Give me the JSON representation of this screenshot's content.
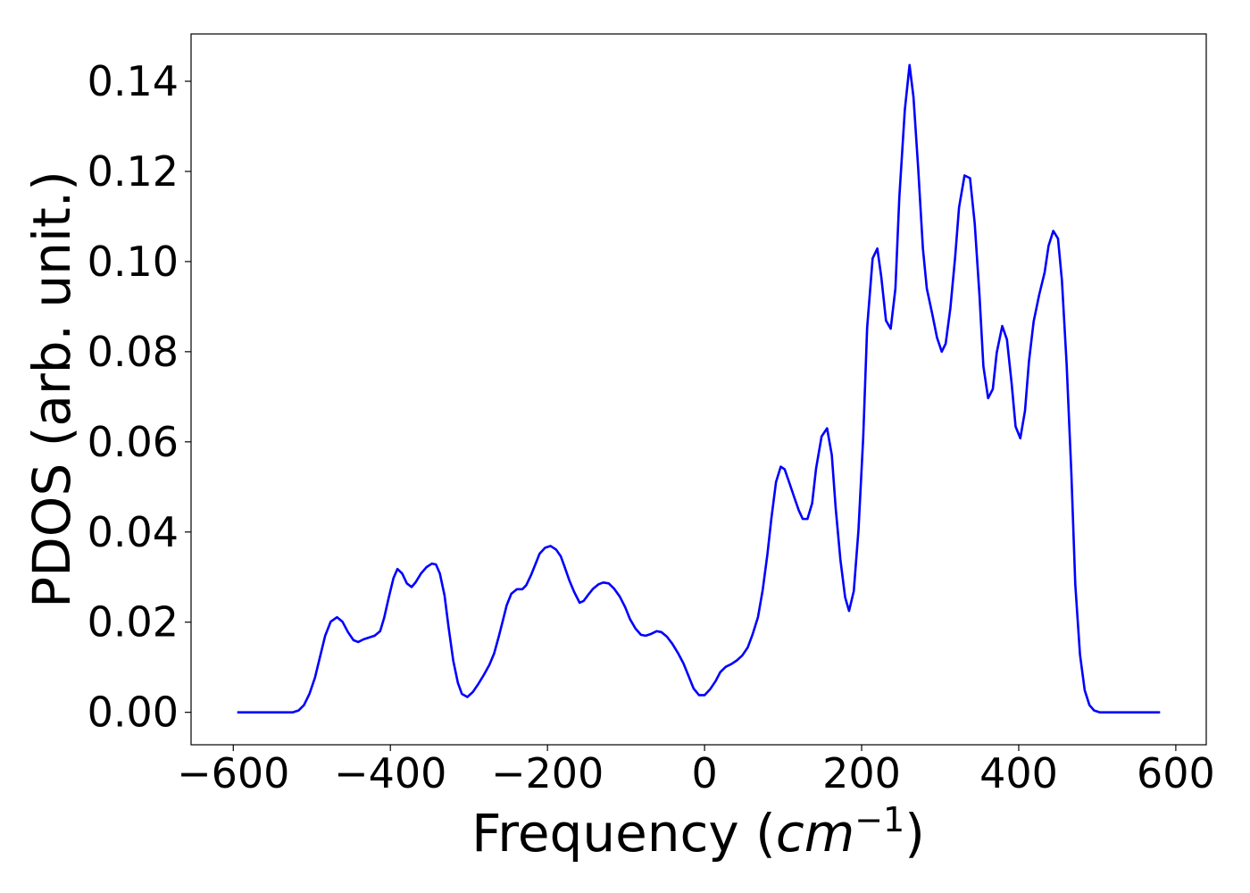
{
  "chart_data": {
    "type": "line",
    "xlabel": {
      "text": "Frequency (",
      "math": "cm",
      "sup": "−1",
      "close": ")"
    },
    "ylabel": "PDOS (arb. unit.)",
    "x": [
      -595,
      -524,
      -517,
      -510,
      -503,
      -496,
      -490,
      -483,
      -476,
      -468,
      -461,
      -454,
      -447,
      -441,
      -434,
      -427,
      -420,
      -413,
      -408,
      -402,
      -396,
      -391,
      -385,
      -379,
      -373,
      -368,
      -361,
      -354,
      -347,
      -342,
      -337,
      -331,
      -326,
      -320,
      -314,
      -309,
      -302,
      -295,
      -288,
      -281,
      -274,
      -268,
      -262,
      -256,
      -252,
      -246,
      -239,
      -232,
      -227,
      -221,
      -215,
      -210,
      -203,
      -196,
      -189,
      -183,
      -178,
      -172,
      -166,
      -159,
      -154,
      -148,
      -142,
      -135,
      -129,
      -122,
      -115,
      -108,
      -101,
      -95,
      -88,
      -81,
      -75,
      -68,
      -61,
      -55,
      -48,
      -41,
      -34,
      -27,
      -20,
      -14,
      -7,
      0,
      7,
      14,
      20,
      27,
      34,
      41,
      48,
      55,
      61,
      68,
      74,
      80,
      85,
      91,
      97,
      102,
      108,
      114,
      120,
      125,
      131,
      137,
      142,
      149,
      156,
      162,
      167,
      173,
      179,
      184,
      190,
      196,
      202,
      207,
      214,
      220,
      225,
      231,
      237,
      243,
      248,
      255,
      261,
      266,
      272,
      278,
      283,
      290,
      296,
      302,
      307,
      313,
      319,
      324,
      331,
      338,
      344,
      350,
      355,
      361,
      367,
      372,
      379,
      385,
      391,
      396,
      402,
      408,
      413,
      419,
      426,
      433,
      438,
      444,
      450,
      455,
      461,
      467,
      472,
      478,
      484,
      490,
      496,
      503,
      580
    ],
    "series": [
      {
        "color": "#0000ff",
        "values": [
          0,
          0,
          0.0004,
          0.0016,
          0.0041,
          0.0077,
          0.012,
          0.017,
          0.0201,
          0.0211,
          0.0201,
          0.0178,
          0.016,
          0.0156,
          0.0162,
          0.0166,
          0.017,
          0.018,
          0.0209,
          0.0255,
          0.0298,
          0.0318,
          0.0308,
          0.0286,
          0.0278,
          0.0288,
          0.0308,
          0.0322,
          0.033,
          0.0328,
          0.0308,
          0.0259,
          0.019,
          0.0115,
          0.0065,
          0.0041,
          0.0034,
          0.0045,
          0.0063,
          0.0083,
          0.0105,
          0.013,
          0.0168,
          0.0209,
          0.0237,
          0.0263,
          0.0273,
          0.0273,
          0.0282,
          0.0304,
          0.033,
          0.0352,
          0.0365,
          0.0369,
          0.0361,
          0.0346,
          0.0322,
          0.0292,
          0.0267,
          0.0243,
          0.0247,
          0.0261,
          0.0274,
          0.0284,
          0.0288,
          0.0286,
          0.0274,
          0.0257,
          0.0233,
          0.0207,
          0.0186,
          0.0172,
          0.017,
          0.0174,
          0.018,
          0.0178,
          0.0168,
          0.0152,
          0.0132,
          0.0109,
          0.0079,
          0.0053,
          0.0038,
          0.0038,
          0.0051,
          0.0069,
          0.0089,
          0.0101,
          0.0107,
          0.0115,
          0.0126,
          0.0144,
          0.0172,
          0.0211,
          0.0271,
          0.035,
          0.0429,
          0.0511,
          0.0545,
          0.0539,
          0.0509,
          0.0478,
          0.0448,
          0.0429,
          0.0429,
          0.0464,
          0.0541,
          0.0612,
          0.063,
          0.0571,
          0.0452,
          0.0338,
          0.0255,
          0.0225,
          0.0269,
          0.0405,
          0.061,
          0.0853,
          0.1007,
          0.1029,
          0.0966,
          0.0869,
          0.0851,
          0.094,
          0.1143,
          0.1337,
          0.1436,
          0.1365,
          0.1207,
          0.1029,
          0.094,
          0.0883,
          0.0831,
          0.08,
          0.0818,
          0.0897,
          0.1009,
          0.112,
          0.1191,
          0.1185,
          0.1084,
          0.0926,
          0.0768,
          0.0697,
          0.0717,
          0.0798,
          0.0857,
          0.0827,
          0.0729,
          0.0634,
          0.0608,
          0.0669,
          0.0778,
          0.0867,
          0.0926,
          0.0976,
          0.1035,
          0.1068,
          0.1051,
          0.0958,
          0.0772,
          0.0531,
          0.0284,
          0.0128,
          0.0049,
          0.0016,
          0.0004,
          0,
          0
        ]
      }
    ],
    "xlim": [
      -653.75,
      638.75
    ],
    "xticks": [
      {
        "value": -600,
        "label": "−600"
      },
      {
        "value": -400,
        "label": "−400"
      },
      {
        "value": -200,
        "label": "−200"
      },
      0,
      200,
      400,
      600
    ],
    "ylim": [
      -0.0072,
      0.1505
    ],
    "yticks": [
      {
        "value": 0,
        "label": "0.00"
      },
      {
        "value": 0.02,
        "label": "0.02"
      },
      {
        "value": 0.04,
        "label": "0.04"
      },
      {
        "value": 0.06,
        "label": "0.06"
      },
      {
        "value": 0.08,
        "label": "0.08"
      },
      {
        "value": 0.1,
        "label": "0.10"
      },
      {
        "value": 0.12,
        "label": "0.12"
      },
      {
        "value": 0.14,
        "label": "0.14"
      }
    ],
    "grid": false
  }
}
